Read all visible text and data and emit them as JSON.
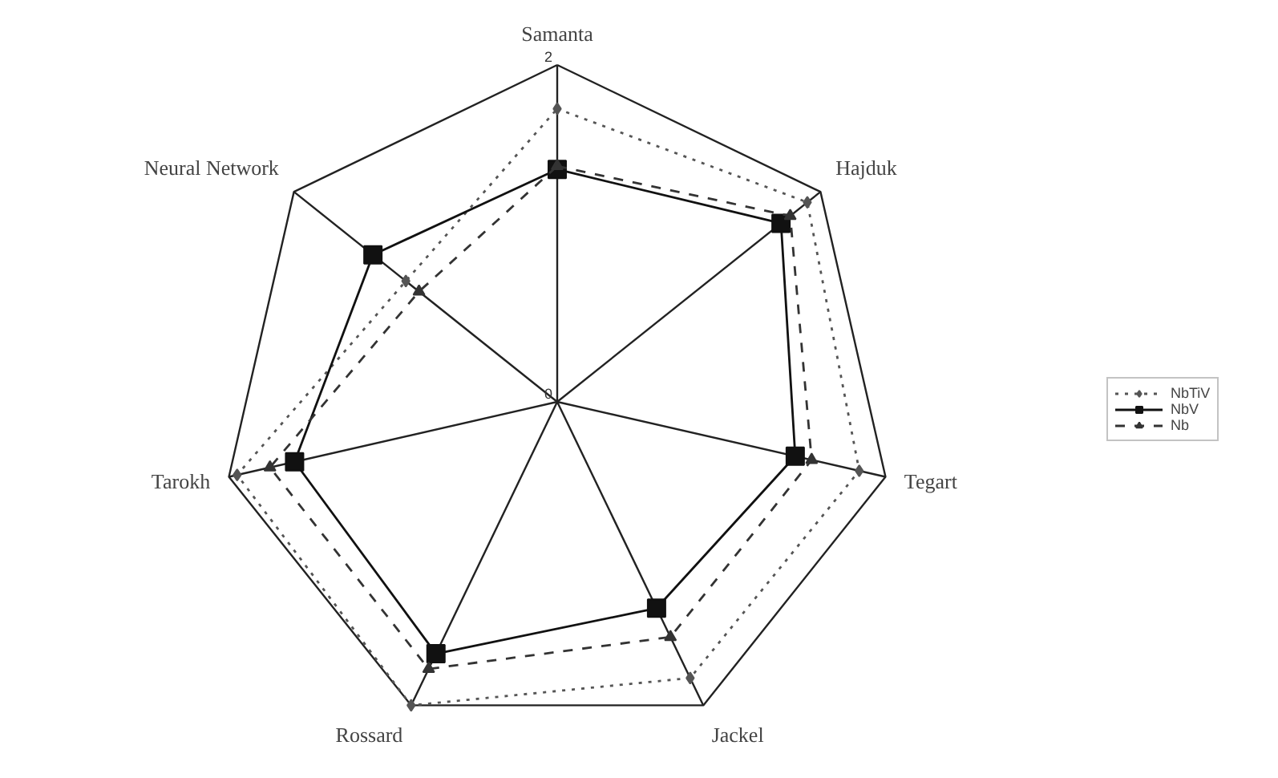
{
  "chart_data": {
    "type": "radar",
    "categories": [
      "Samanta",
      "Hajduk",
      "Tegart",
      "Jackel",
      "Rossard",
      "Tarokh",
      "Neural Network"
    ],
    "series": [
      {
        "name": "NbTiV",
        "color": "#555555",
        "values": [
          1.74,
          1.9,
          1.84,
          1.82,
          2.0,
          1.95,
          1.15
        ],
        "marker": "diamond",
        "line_style": "dotted"
      },
      {
        "name": "NbV",
        "color": "#111111",
        "values": [
          1.38,
          1.7,
          1.45,
          1.36,
          1.66,
          1.6,
          1.4
        ],
        "marker": "square",
        "line_style": "solid"
      },
      {
        "name": "Nb",
        "color": "#333333",
        "values": [
          1.4,
          1.77,
          1.55,
          1.55,
          1.76,
          1.75,
          1.05
        ],
        "marker": "triangle",
        "line_style": "dashed"
      }
    ],
    "ylim": [
      0,
      2
    ],
    "yticks": [
      0,
      2
    ],
    "grid": true,
    "legend": "right"
  }
}
